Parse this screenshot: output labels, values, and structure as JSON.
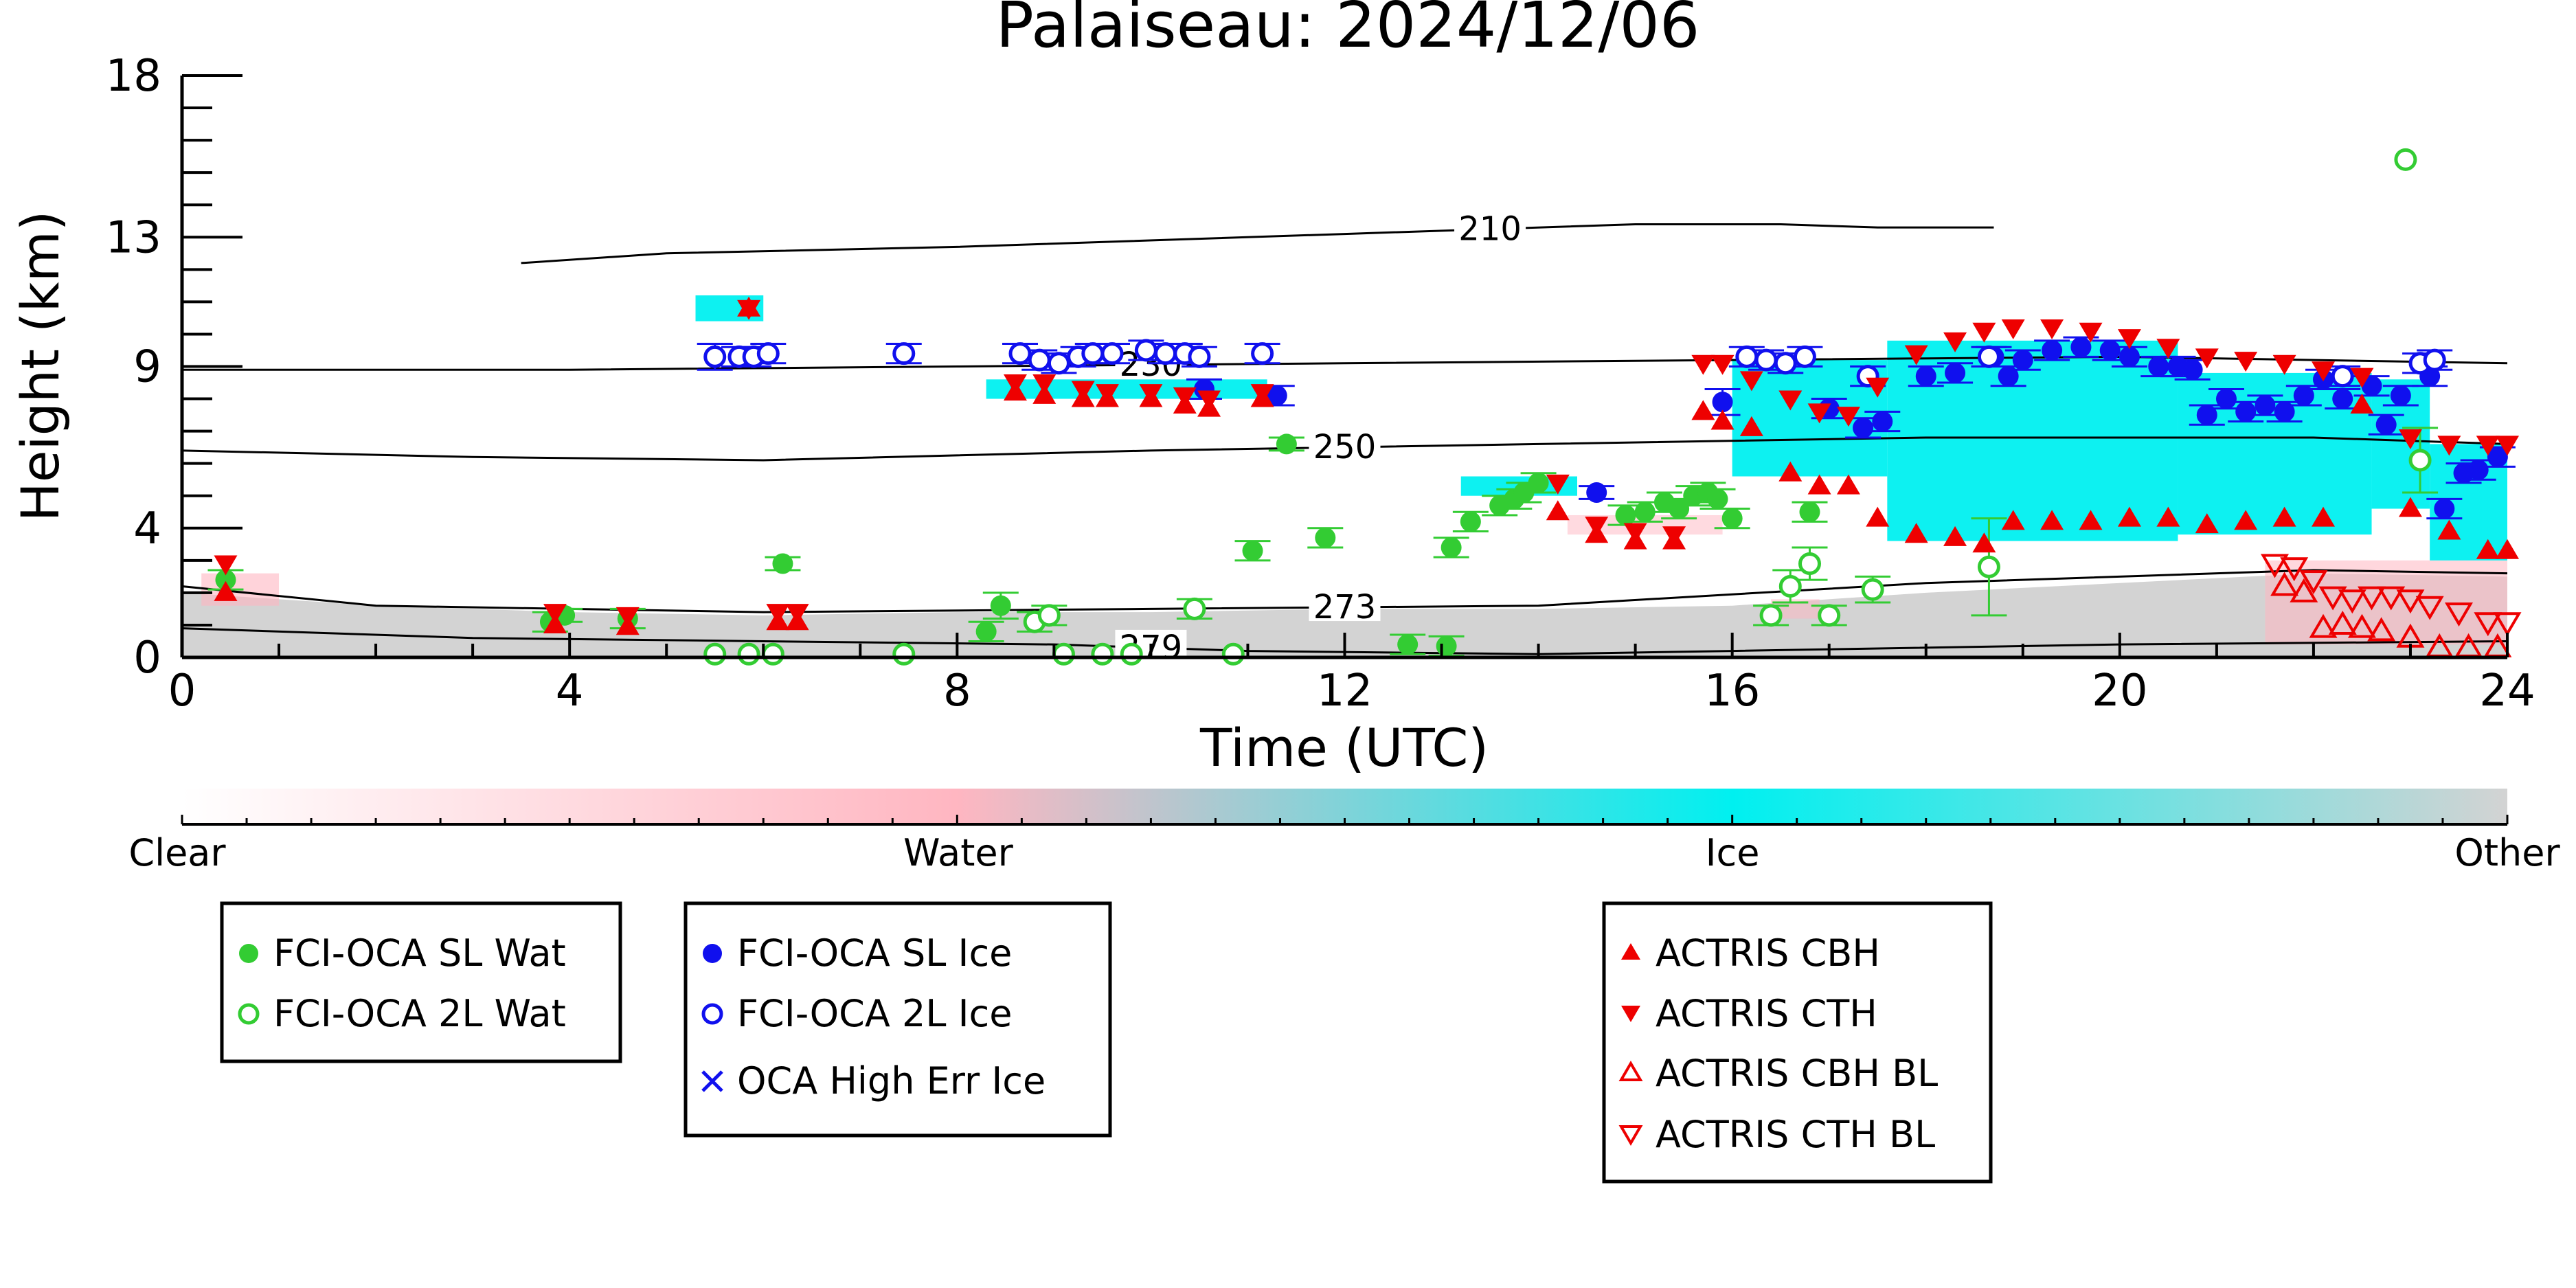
{
  "chart_data": {
    "type": "scatter",
    "title": "Palaiseau: 2024/12/06",
    "xlabel": "Time (UTC)",
    "ylabel": "Height (km)",
    "xlim": [
      0,
      24
    ],
    "ylim": [
      0,
      18
    ],
    "x_ticks": [
      "0",
      "4",
      "8",
      "12",
      "16",
      "20",
      "24"
    ],
    "y_ticks": [
      "0",
      "4",
      "9",
      "13",
      "18"
    ],
    "grid": false,
    "colorbar": {
      "labels": [
        "Clear",
        "Water",
        "Ice",
        "Other"
      ],
      "colors": [
        "#ffffff",
        "#ffb6c1",
        "#00f0f0",
        "#d3d3d3"
      ]
    },
    "contours": [
      {
        "label": "210",
        "x": [
          3.5,
          5,
          8,
          12,
          15,
          16.5,
          17.5,
          18.7
        ],
        "y": [
          12.2,
          12.5,
          12.7,
          13.1,
          13.4,
          13.4,
          13.3,
          13.3
        ]
      },
      {
        "label": "230",
        "x": [
          0,
          4,
          8,
          12,
          16,
          20,
          24
        ],
        "y": [
          8.9,
          8.9,
          9.0,
          9.1,
          9.2,
          9.3,
          9.1
        ]
      },
      {
        "label": "250",
        "x": [
          0,
          3,
          6,
          10,
          14,
          18,
          22,
          24
        ],
        "y": [
          6.4,
          6.2,
          6.1,
          6.4,
          6.6,
          6.8,
          6.8,
          6.6
        ]
      },
      {
        "label": "273",
        "x": [
          0,
          2,
          6,
          10,
          14,
          18,
          22,
          24
        ],
        "y": [
          2.2,
          1.6,
          1.4,
          1.5,
          1.6,
          2.3,
          2.7,
          2.6
        ]
      },
      {
        "label": "279",
        "x": [
          0,
          3,
          6,
          9,
          11,
          14,
          16,
          20,
          24
        ],
        "y": [
          0.9,
          0.6,
          0.5,
          0.4,
          0.2,
          0.1,
          0.2,
          0.4,
          0.5
        ]
      }
    ],
    "series": [
      {
        "name": "FCI-OCA SL Wat",
        "marker": "circle",
        "filled": true,
        "color": "#33cc33",
        "points": [
          [
            0.45,
            2.4
          ],
          [
            3.8,
            1.1
          ],
          [
            3.95,
            1.3
          ],
          [
            4.6,
            1.2
          ],
          [
            6.2,
            2.9
          ],
          [
            8.3,
            0.8
          ],
          [
            8.45,
            1.6
          ],
          [
            11.05,
            3.3
          ],
          [
            11.4,
            6.6
          ],
          [
            11.8,
            3.7
          ],
          [
            12.65,
            0.4
          ],
          [
            13.05,
            0.35
          ],
          [
            13.1,
            3.4
          ],
          [
            13.3,
            4.2
          ],
          [
            13.6,
            4.7
          ],
          [
            13.75,
            4.9
          ],
          [
            13.85,
            5.1
          ],
          [
            14.0,
            5.4
          ],
          [
            14.9,
            4.4
          ],
          [
            15.1,
            4.5
          ],
          [
            15.3,
            4.8
          ],
          [
            15.45,
            4.6
          ],
          [
            15.6,
            5.0
          ],
          [
            15.75,
            5.1
          ],
          [
            15.85,
            4.9
          ],
          [
            16.0,
            4.3
          ],
          [
            16.8,
            4.5
          ]
        ],
        "errors": [
          0.3,
          0.3,
          0.2,
          0.3,
          0.2,
          0.3,
          0.4,
          0.3,
          0.2,
          0.3,
          0.3,
          0.3,
          0.3,
          0.3,
          0.3,
          0.3,
          0.3,
          0.3,
          0.3,
          0.3,
          0.3,
          0.3,
          0.3,
          0.3,
          0.3,
          0.3,
          0.3
        ]
      },
      {
        "name": "FCI-OCA 2L Wat",
        "marker": "circle",
        "filled": false,
        "color": "#33cc33",
        "points": [
          [
            5.5,
            0.1
          ],
          [
            5.85,
            0.1
          ],
          [
            6.1,
            0.1
          ],
          [
            7.45,
            0.1
          ],
          [
            8.8,
            1.1
          ],
          [
            8.95,
            1.3
          ],
          [
            9.1,
            0.1
          ],
          [
            9.5,
            0.1
          ],
          [
            9.8,
            0.1
          ],
          [
            10.45,
            1.5
          ],
          [
            10.85,
            0.1
          ],
          [
            16.4,
            1.3
          ],
          [
            16.6,
            2.2
          ],
          [
            16.8,
            2.9
          ],
          [
            17.0,
            1.3
          ],
          [
            17.45,
            2.1
          ],
          [
            18.65,
            2.8
          ],
          [
            22.95,
            15.4
          ],
          [
            23.1,
            6.1
          ]
        ],
        "errors": [
          0,
          0,
          0,
          0,
          0.3,
          0.3,
          0,
          0,
          0,
          0.3,
          0,
          0.3,
          0.5,
          0.5,
          0.3,
          0.4,
          1.5,
          0,
          1.0
        ]
      },
      {
        "name": "FCI-OCA SL Ice",
        "marker": "circle",
        "filled": true,
        "color": "#1010ee",
        "points": [
          [
            10.55,
            8.3
          ],
          [
            11.3,
            8.1
          ],
          [
            14.6,
            5.1
          ],
          [
            15.9,
            7.9
          ],
          [
            17.0,
            7.7
          ],
          [
            17.35,
            7.1
          ],
          [
            17.55,
            7.3
          ],
          [
            18.0,
            8.7
          ],
          [
            18.3,
            8.8
          ],
          [
            18.7,
            9.3
          ],
          [
            18.85,
            8.7
          ],
          [
            19.0,
            9.2
          ],
          [
            19.3,
            9.5
          ],
          [
            19.6,
            9.6
          ],
          [
            19.9,
            9.5
          ],
          [
            20.1,
            9.3
          ],
          [
            20.4,
            9.0
          ],
          [
            20.6,
            9.0
          ],
          [
            20.75,
            8.9
          ],
          [
            20.9,
            7.5
          ],
          [
            21.1,
            8.0
          ],
          [
            21.3,
            7.6
          ],
          [
            21.5,
            7.8
          ],
          [
            21.7,
            7.6
          ],
          [
            21.9,
            8.1
          ],
          [
            22.1,
            8.6
          ],
          [
            22.3,
            8.0
          ],
          [
            22.6,
            8.4
          ],
          [
            22.75,
            7.2
          ],
          [
            22.9,
            8.1
          ],
          [
            23.2,
            8.7
          ],
          [
            23.35,
            4.6
          ],
          [
            23.55,
            5.7
          ],
          [
            23.7,
            5.8
          ],
          [
            23.9,
            6.2
          ]
        ],
        "errors": [
          0.3,
          0.3,
          0.2,
          0.4,
          0.3,
          0.3,
          0.3,
          0.3,
          0.3,
          0.3,
          0.3,
          0.3,
          0.3,
          0.3,
          0.3,
          0.3,
          0.3,
          0.3,
          0.3,
          0.3,
          0.3,
          0.3,
          0.3,
          0.3,
          0.3,
          0.3,
          0.3,
          0.3,
          0.3,
          0.3,
          0.3,
          0.3,
          0.3,
          0.3,
          0.3
        ]
      },
      {
        "name": "FCI-OCA 2L Ice",
        "marker": "circle",
        "filled": false,
        "color": "#1010ee",
        "points": [
          [
            5.5,
            9.3
          ],
          [
            5.75,
            9.3
          ],
          [
            5.9,
            9.3
          ],
          [
            6.05,
            9.4
          ],
          [
            7.45,
            9.4
          ],
          [
            8.65,
            9.4
          ],
          [
            8.85,
            9.2
          ],
          [
            9.05,
            9.1
          ],
          [
            9.25,
            9.3
          ],
          [
            9.4,
            9.4
          ],
          [
            9.6,
            9.4
          ],
          [
            9.95,
            9.5
          ],
          [
            10.15,
            9.4
          ],
          [
            10.35,
            9.4
          ],
          [
            10.5,
            9.3
          ],
          [
            11.15,
            9.4
          ],
          [
            16.15,
            9.3
          ],
          [
            16.35,
            9.2
          ],
          [
            16.55,
            9.1
          ],
          [
            16.75,
            9.3
          ],
          [
            17.4,
            8.7
          ],
          [
            18.65,
            9.3
          ],
          [
            22.3,
            8.7
          ],
          [
            23.1,
            9.1
          ],
          [
            23.25,
            9.2
          ]
        ],
        "errors": [
          0.4,
          0.3,
          0.3,
          0.3,
          0.3,
          0.3,
          0.3,
          0.3,
          0.3,
          0.3,
          0.3,
          0.3,
          0.3,
          0.3,
          0.3,
          0.3,
          0.3,
          0.3,
          0.3,
          0.3,
          0.3,
          0.3,
          0.3,
          0.3,
          0.3
        ]
      },
      {
        "name": "OCA High Err Ice",
        "marker": "x",
        "filled": false,
        "color": "#1010ee",
        "points": []
      },
      {
        "name": "ACTRIS CBH",
        "marker": "triangle-up",
        "filled": true,
        "color": "#ee0000",
        "points": [
          [
            0.45,
            2.0
          ],
          [
            3.85,
            1.0
          ],
          [
            4.6,
            0.95
          ],
          [
            5.85,
            10.8
          ],
          [
            6.15,
            1.1
          ],
          [
            6.35,
            1.1
          ],
          [
            8.6,
            8.2
          ],
          [
            8.9,
            8.1
          ],
          [
            9.3,
            8.0
          ],
          [
            9.55,
            8.0
          ],
          [
            10.0,
            8.0
          ],
          [
            10.35,
            7.8
          ],
          [
            10.6,
            7.7
          ],
          [
            11.15,
            8.0
          ],
          [
            14.2,
            4.5
          ],
          [
            14.6,
            3.8
          ],
          [
            15.0,
            3.6
          ],
          [
            15.4,
            3.6
          ],
          [
            15.7,
            7.6
          ],
          [
            15.9,
            7.3
          ],
          [
            16.2,
            7.1
          ],
          [
            16.6,
            5.7
          ],
          [
            16.9,
            5.3
          ],
          [
            17.2,
            5.3
          ],
          [
            17.5,
            4.3
          ],
          [
            17.9,
            3.8
          ],
          [
            18.3,
            3.7
          ],
          [
            18.6,
            3.5
          ],
          [
            18.9,
            4.2
          ],
          [
            19.3,
            4.2
          ],
          [
            19.7,
            4.2
          ],
          [
            20.1,
            4.3
          ],
          [
            20.5,
            4.3
          ],
          [
            20.9,
            4.1
          ],
          [
            21.3,
            4.2
          ],
          [
            21.7,
            4.3
          ],
          [
            22.1,
            4.3
          ],
          [
            22.5,
            7.8
          ],
          [
            23.0,
            4.6
          ],
          [
            23.4,
            3.9
          ],
          [
            23.8,
            3.3
          ],
          [
            24.0,
            3.3
          ]
        ]
      },
      {
        "name": "ACTRIS CTH",
        "marker": "triangle-down",
        "filled": true,
        "color": "#ee0000",
        "points": [
          [
            0.45,
            2.9
          ],
          [
            3.85,
            1.4
          ],
          [
            4.6,
            1.3
          ],
          [
            5.85,
            10.8
          ],
          [
            6.15,
            1.4
          ],
          [
            6.35,
            1.4
          ],
          [
            8.6,
            8.5
          ],
          [
            8.9,
            8.5
          ],
          [
            9.3,
            8.3
          ],
          [
            9.55,
            8.2
          ],
          [
            10.0,
            8.2
          ],
          [
            10.35,
            8.1
          ],
          [
            10.6,
            8.0
          ],
          [
            11.15,
            8.2
          ],
          [
            14.2,
            5.4
          ],
          [
            14.6,
            4.1
          ],
          [
            15.0,
            3.9
          ],
          [
            15.4,
            3.8
          ],
          [
            15.7,
            9.1
          ],
          [
            15.9,
            9.1
          ],
          [
            16.2,
            8.6
          ],
          [
            16.6,
            8.0
          ],
          [
            16.9,
            7.6
          ],
          [
            17.2,
            7.5
          ],
          [
            17.5,
            8.4
          ],
          [
            17.9,
            9.4
          ],
          [
            18.3,
            9.8
          ],
          [
            18.6,
            10.1
          ],
          [
            18.9,
            10.2
          ],
          [
            19.3,
            10.2
          ],
          [
            19.7,
            10.1
          ],
          [
            20.1,
            9.9
          ],
          [
            20.5,
            9.6
          ],
          [
            20.9,
            9.3
          ],
          [
            21.3,
            9.2
          ],
          [
            21.7,
            9.1
          ],
          [
            22.1,
            8.9
          ],
          [
            22.5,
            8.7
          ],
          [
            23.0,
            6.8
          ],
          [
            23.4,
            6.6
          ],
          [
            23.8,
            6.6
          ],
          [
            24.0,
            6.6
          ]
        ]
      },
      {
        "name": "ACTRIS CBH BL",
        "marker": "triangle-up",
        "filled": false,
        "color": "#ee0000",
        "points": [
          [
            21.7,
            2.2
          ],
          [
            21.9,
            2.0
          ],
          [
            22.1,
            0.9
          ],
          [
            22.3,
            1.0
          ],
          [
            22.5,
            0.9
          ],
          [
            22.7,
            0.8
          ],
          [
            23.0,
            0.6
          ],
          [
            23.3,
            0.3
          ],
          [
            23.6,
            0.3
          ],
          [
            23.9,
            0.3
          ]
        ]
      },
      {
        "name": "ACTRIS CTH BL",
        "marker": "triangle-down",
        "filled": false,
        "color": "#ee0000",
        "points": [
          [
            21.6,
            2.9
          ],
          [
            21.8,
            2.8
          ],
          [
            22.0,
            2.4
          ],
          [
            22.2,
            1.9
          ],
          [
            22.4,
            1.8
          ],
          [
            22.6,
            1.9
          ],
          [
            22.8,
            1.9
          ],
          [
            23.0,
            1.8
          ],
          [
            23.2,
            1.6
          ],
          [
            23.5,
            1.4
          ],
          [
            23.8,
            1.1
          ],
          [
            24.0,
            1.1
          ]
        ]
      }
    ]
  },
  "legend_groups": [
    {
      "items": [
        {
          "label": "FCI-OCA SL Wat"
        },
        {
          "label": "FCI-OCA 2L Wat"
        }
      ]
    },
    {
      "items": [
        {
          "label": "FCI-OCA SL Ice"
        },
        {
          "label": "FCI-OCA 2L Ice"
        },
        {
          "label": "OCA High Err Ice"
        }
      ]
    },
    {
      "items": [
        {
          "label": "ACTRIS CBH"
        },
        {
          "label": "ACTRIS CTH"
        },
        {
          "label": "ACTRIS CBH BL"
        },
        {
          "label": "ACTRIS CTH BL"
        }
      ]
    }
  ]
}
